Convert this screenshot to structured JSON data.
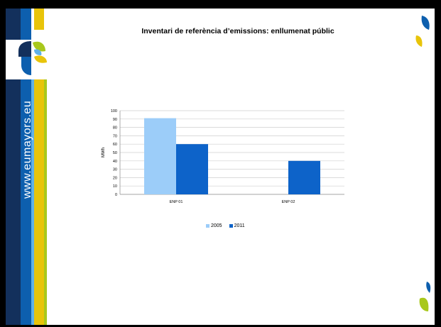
{
  "sidebar": {
    "website": "www.eumayors.eu"
  },
  "slide": {
    "title": "Inventari de referència d’emissions: enllumenat públic"
  },
  "colors": {
    "series_2005": "#9ccdf9",
    "series_2011": "#0d63c9"
  },
  "chart_data": {
    "type": "bar",
    "categories": [
      "ENP 01",
      "ENP 02"
    ],
    "series": [
      {
        "name": "2005",
        "values": [
          91,
          0
        ]
      },
      {
        "name": "2011",
        "values": [
          60,
          40
        ]
      }
    ],
    "ylabel": "MWh",
    "xlabel": "",
    "ylim": [
      0,
      100
    ],
    "yticks": [
      0,
      10,
      20,
      30,
      40,
      50,
      60,
      70,
      80,
      90,
      100
    ],
    "grid": true,
    "legend": "bottom"
  }
}
